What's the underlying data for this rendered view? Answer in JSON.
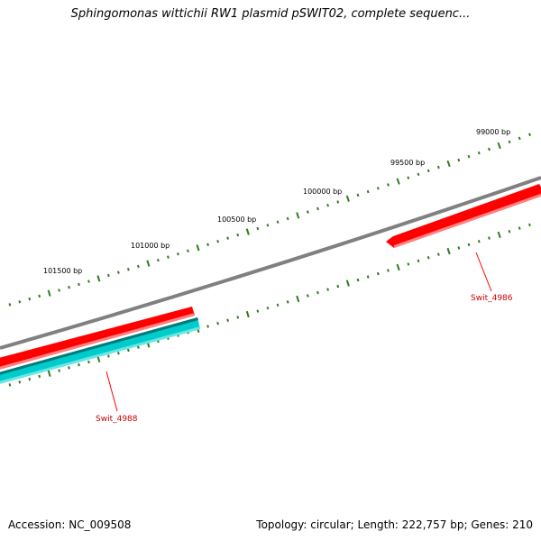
{
  "title": "Sphingomonas wittichii RW1 plasmid pSWIT02, complete sequenc...",
  "footer": {
    "accession": "Accession: NC_009508",
    "summary": "Topology: circular; Length: 222,757 bp; Genes: 210"
  },
  "colors": {
    "backbone": "#808080",
    "forward_gene": "#ff0000",
    "reverse_gene": "#00cccc",
    "tick": "#2e7d1e",
    "label_line": "#ff0000",
    "label_text": "#cc0000"
  },
  "ruler": {
    "labels": [
      "101500 bp",
      "101000 bp",
      "100500 bp",
      "100000 bp",
      "99500 bp",
      "99000 bp"
    ]
  },
  "genes": [
    {
      "name": "Swit_4986",
      "strand": "forward"
    },
    {
      "name": "Swit_4988",
      "strand": "forward"
    },
    {
      "name": "",
      "strand": "reverse"
    }
  ]
}
